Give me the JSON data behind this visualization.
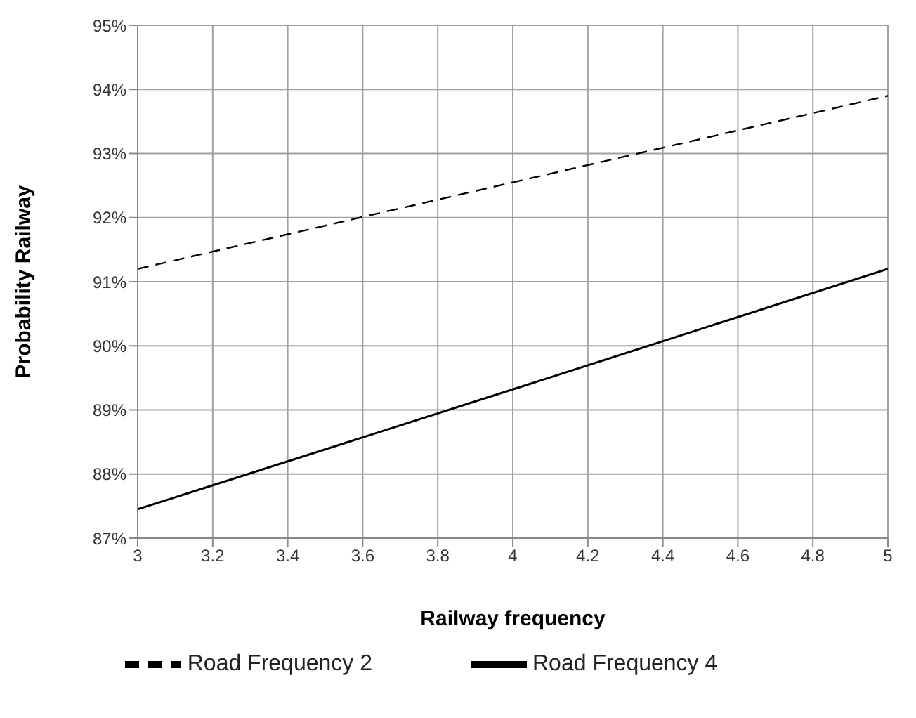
{
  "chart_data": {
    "type": "line",
    "xlabel": "Railway frequency",
    "ylabel": "Probability Railway",
    "x": [
      3,
      4,
      5
    ],
    "series": [
      {
        "name": "Road Frequency 2",
        "color": "#000000",
        "line_style": "dashed",
        "values": [
          91.2,
          92.55,
          93.9
        ]
      },
      {
        "name": "Road Frequency 4",
        "color": "#000000",
        "line_style": "solid",
        "values": [
          87.45,
          89.32,
          91.2
        ]
      }
    ],
    "xlim": [
      3,
      5
    ],
    "xticks": [
      3,
      3.2,
      3.4,
      3.6,
      3.8,
      4,
      4.2,
      4.4,
      4.6,
      4.8,
      5
    ],
    "ylim": [
      87,
      95
    ],
    "yticks": [
      {
        "value": 87,
        "label": "87%"
      },
      {
        "value": 88,
        "label": "88%"
      },
      {
        "value": 89,
        "label": "89%"
      },
      {
        "value": 90,
        "label": "90%"
      },
      {
        "value": 91,
        "label": "91%"
      },
      {
        "value": 92,
        "label": "92%"
      },
      {
        "value": 93,
        "label": "93%"
      },
      {
        "value": 94,
        "label": "94%"
      },
      {
        "value": 95,
        "label": "95%"
      }
    ],
    "grid": true,
    "legend": "bottom",
    "marker": "none"
  }
}
